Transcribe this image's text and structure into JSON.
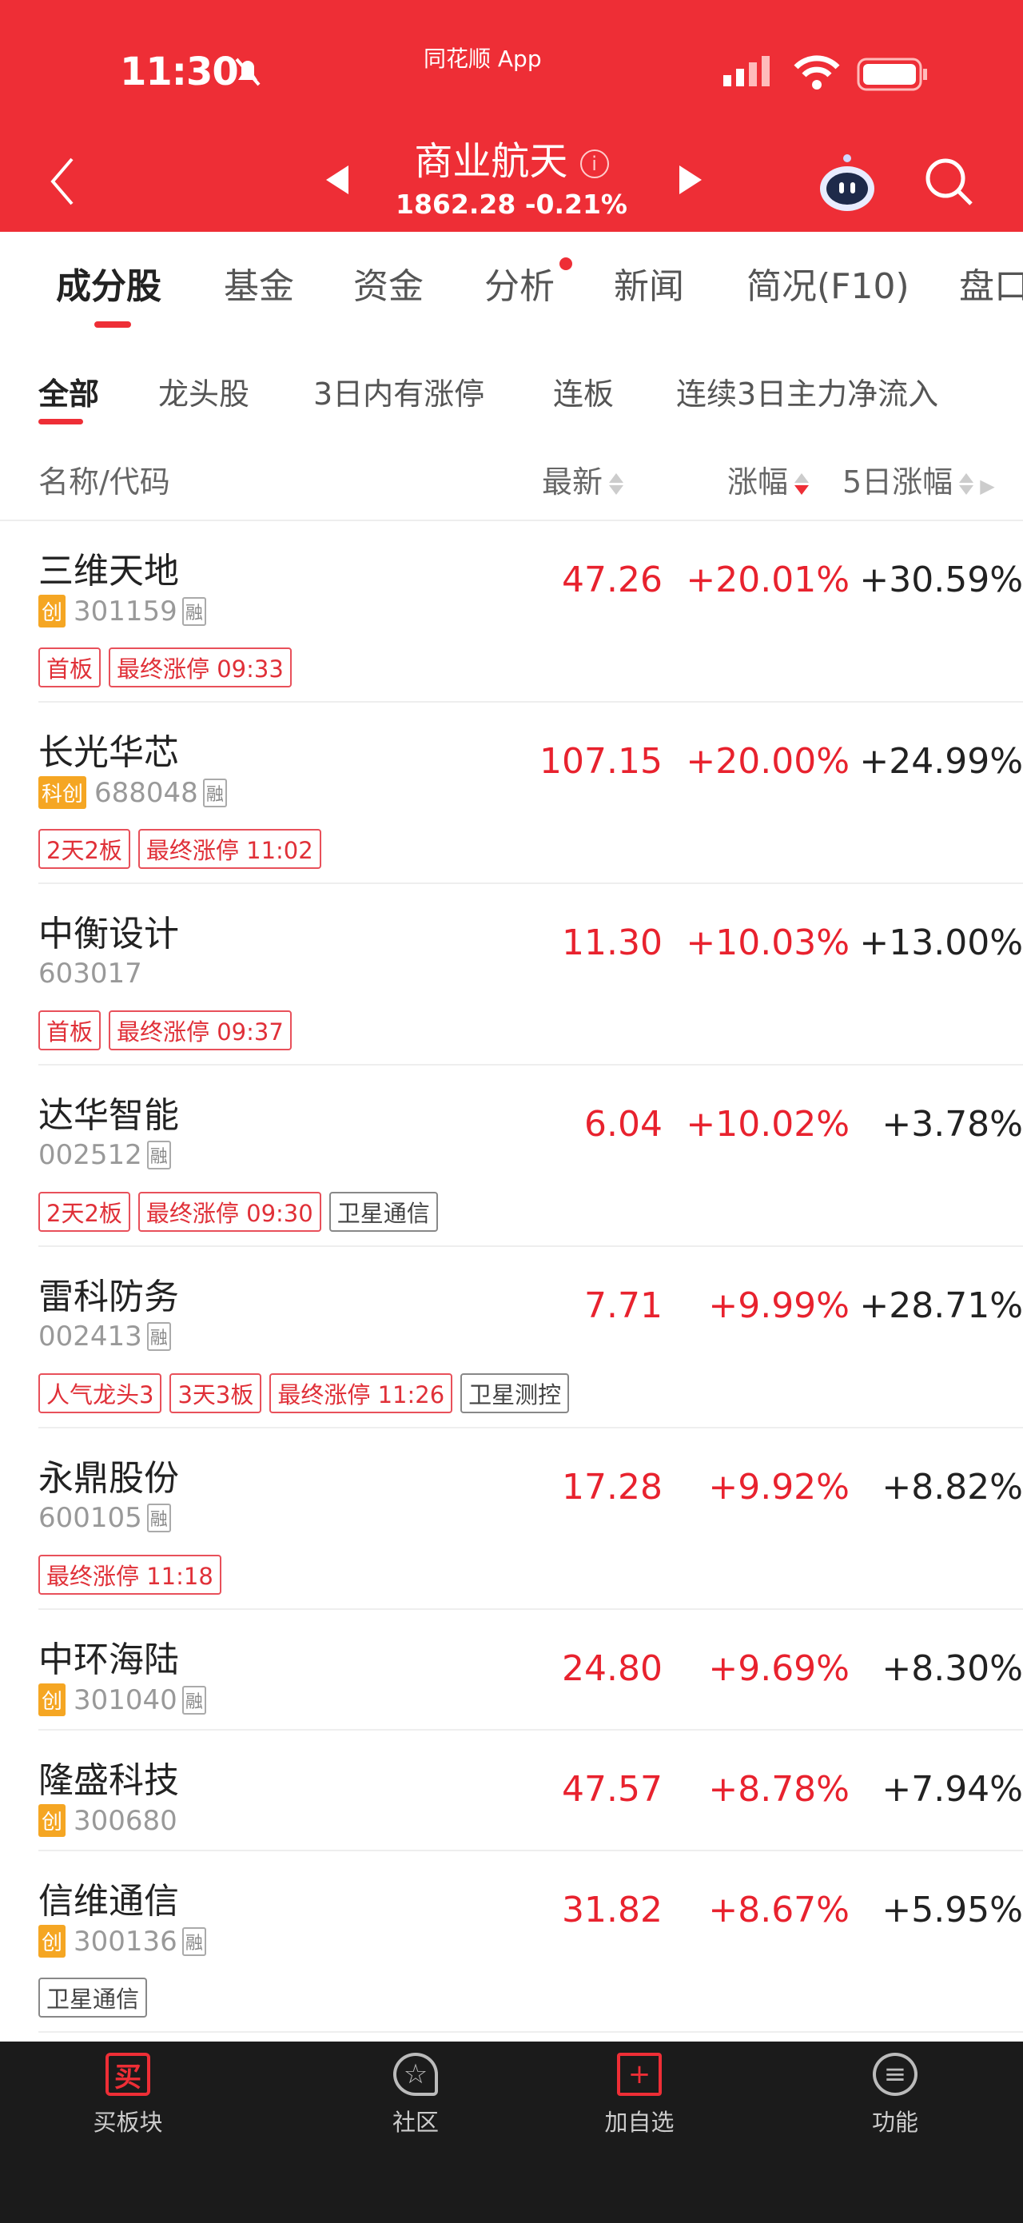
{
  "status": {
    "time": "11:30",
    "app": "同花顺 App"
  },
  "header": {
    "title": "商业航天",
    "index_value": "1862.28",
    "index_change": "-0.21%"
  },
  "tabs": [
    "成分股",
    "基金",
    "资金",
    "分析",
    "新闻",
    "简况(F10)",
    "盘口"
  ],
  "subtabs": [
    "全部",
    "龙头股",
    "3日内有涨停",
    "连板",
    "连续3日主力净流入",
    ""
  ],
  "columns": {
    "name": "名称/代码",
    "price": "最新",
    "change": "涨幅",
    "change5": "5日涨幅"
  },
  "colors": {
    "brand": "#EE2E36",
    "up": "#E8222E"
  },
  "rong_label": "融",
  "stocks": [
    {
      "name": "三维天地",
      "board": "创",
      "code": "301159",
      "rong": true,
      "price": "47.26",
      "change": "+20.01%",
      "change5": "+30.59%",
      "tags": [
        {
          "t": "首板"
        },
        {
          "t": "最终涨停 09:33"
        }
      ]
    },
    {
      "name": "长光华芯",
      "board": "科创",
      "code": "688048",
      "rong": true,
      "price": "107.15",
      "change": "+20.00%",
      "change5": "+24.99%",
      "tags": [
        {
          "t": "2天2板"
        },
        {
          "t": "最终涨停 11:02"
        }
      ]
    },
    {
      "name": "中衡设计",
      "board": "",
      "code": "603017",
      "rong": false,
      "price": "11.30",
      "change": "+10.03%",
      "change5": "+13.00%",
      "tags": [
        {
          "t": "首板"
        },
        {
          "t": "最终涨停 09:37"
        }
      ]
    },
    {
      "name": "达华智能",
      "board": "",
      "code": "002512",
      "rong": true,
      "price": "6.04",
      "change": "+10.02%",
      "change5": "+3.78%",
      "tags": [
        {
          "t": "2天2板"
        },
        {
          "t": "最终涨停 09:30"
        },
        {
          "t": "卫星通信",
          "gray": true
        }
      ]
    },
    {
      "name": "雷科防务",
      "board": "",
      "code": "002413",
      "rong": true,
      "price": "7.71",
      "change": "+9.99%",
      "change5": "+28.71%",
      "tags": [
        {
          "t": "人气龙头3"
        },
        {
          "t": "3天3板"
        },
        {
          "t": "最终涨停 11:26"
        },
        {
          "t": "卫星测控",
          "gray": true
        }
      ]
    },
    {
      "name": "永鼎股份",
      "board": "",
      "code": "600105",
      "rong": true,
      "price": "17.28",
      "change": "+9.92%",
      "change5": "+8.82%",
      "tags": [
        {
          "t": "最终涨停 11:18"
        }
      ]
    },
    {
      "name": "中环海陆",
      "board": "创",
      "code": "301040",
      "rong": true,
      "price": "24.80",
      "change": "+9.69%",
      "change5": "+8.30%",
      "tags": []
    },
    {
      "name": "隆盛科技",
      "board": "创",
      "code": "300680",
      "rong": false,
      "price": "47.57",
      "change": "+8.78%",
      "change5": "+7.94%",
      "tags": []
    },
    {
      "name": "信维通信",
      "board": "创",
      "code": "300136",
      "rong": true,
      "price": "31.82",
      "change": "+8.67%",
      "change5": "+5.95%",
      "tags": [
        {
          "t": "卫星通信",
          "gray": true
        }
      ]
    }
  ],
  "bottom": [
    {
      "label": "买板块",
      "icon": "buy-icon",
      "glyph": "买"
    },
    {
      "label": "社区",
      "icon": "community-icon",
      "glyph": "☆"
    },
    {
      "label": "加自选",
      "icon": "add-watchlist-icon",
      "glyph": "+"
    },
    {
      "label": "功能",
      "icon": "menu-icon",
      "glyph": "≡"
    }
  ]
}
